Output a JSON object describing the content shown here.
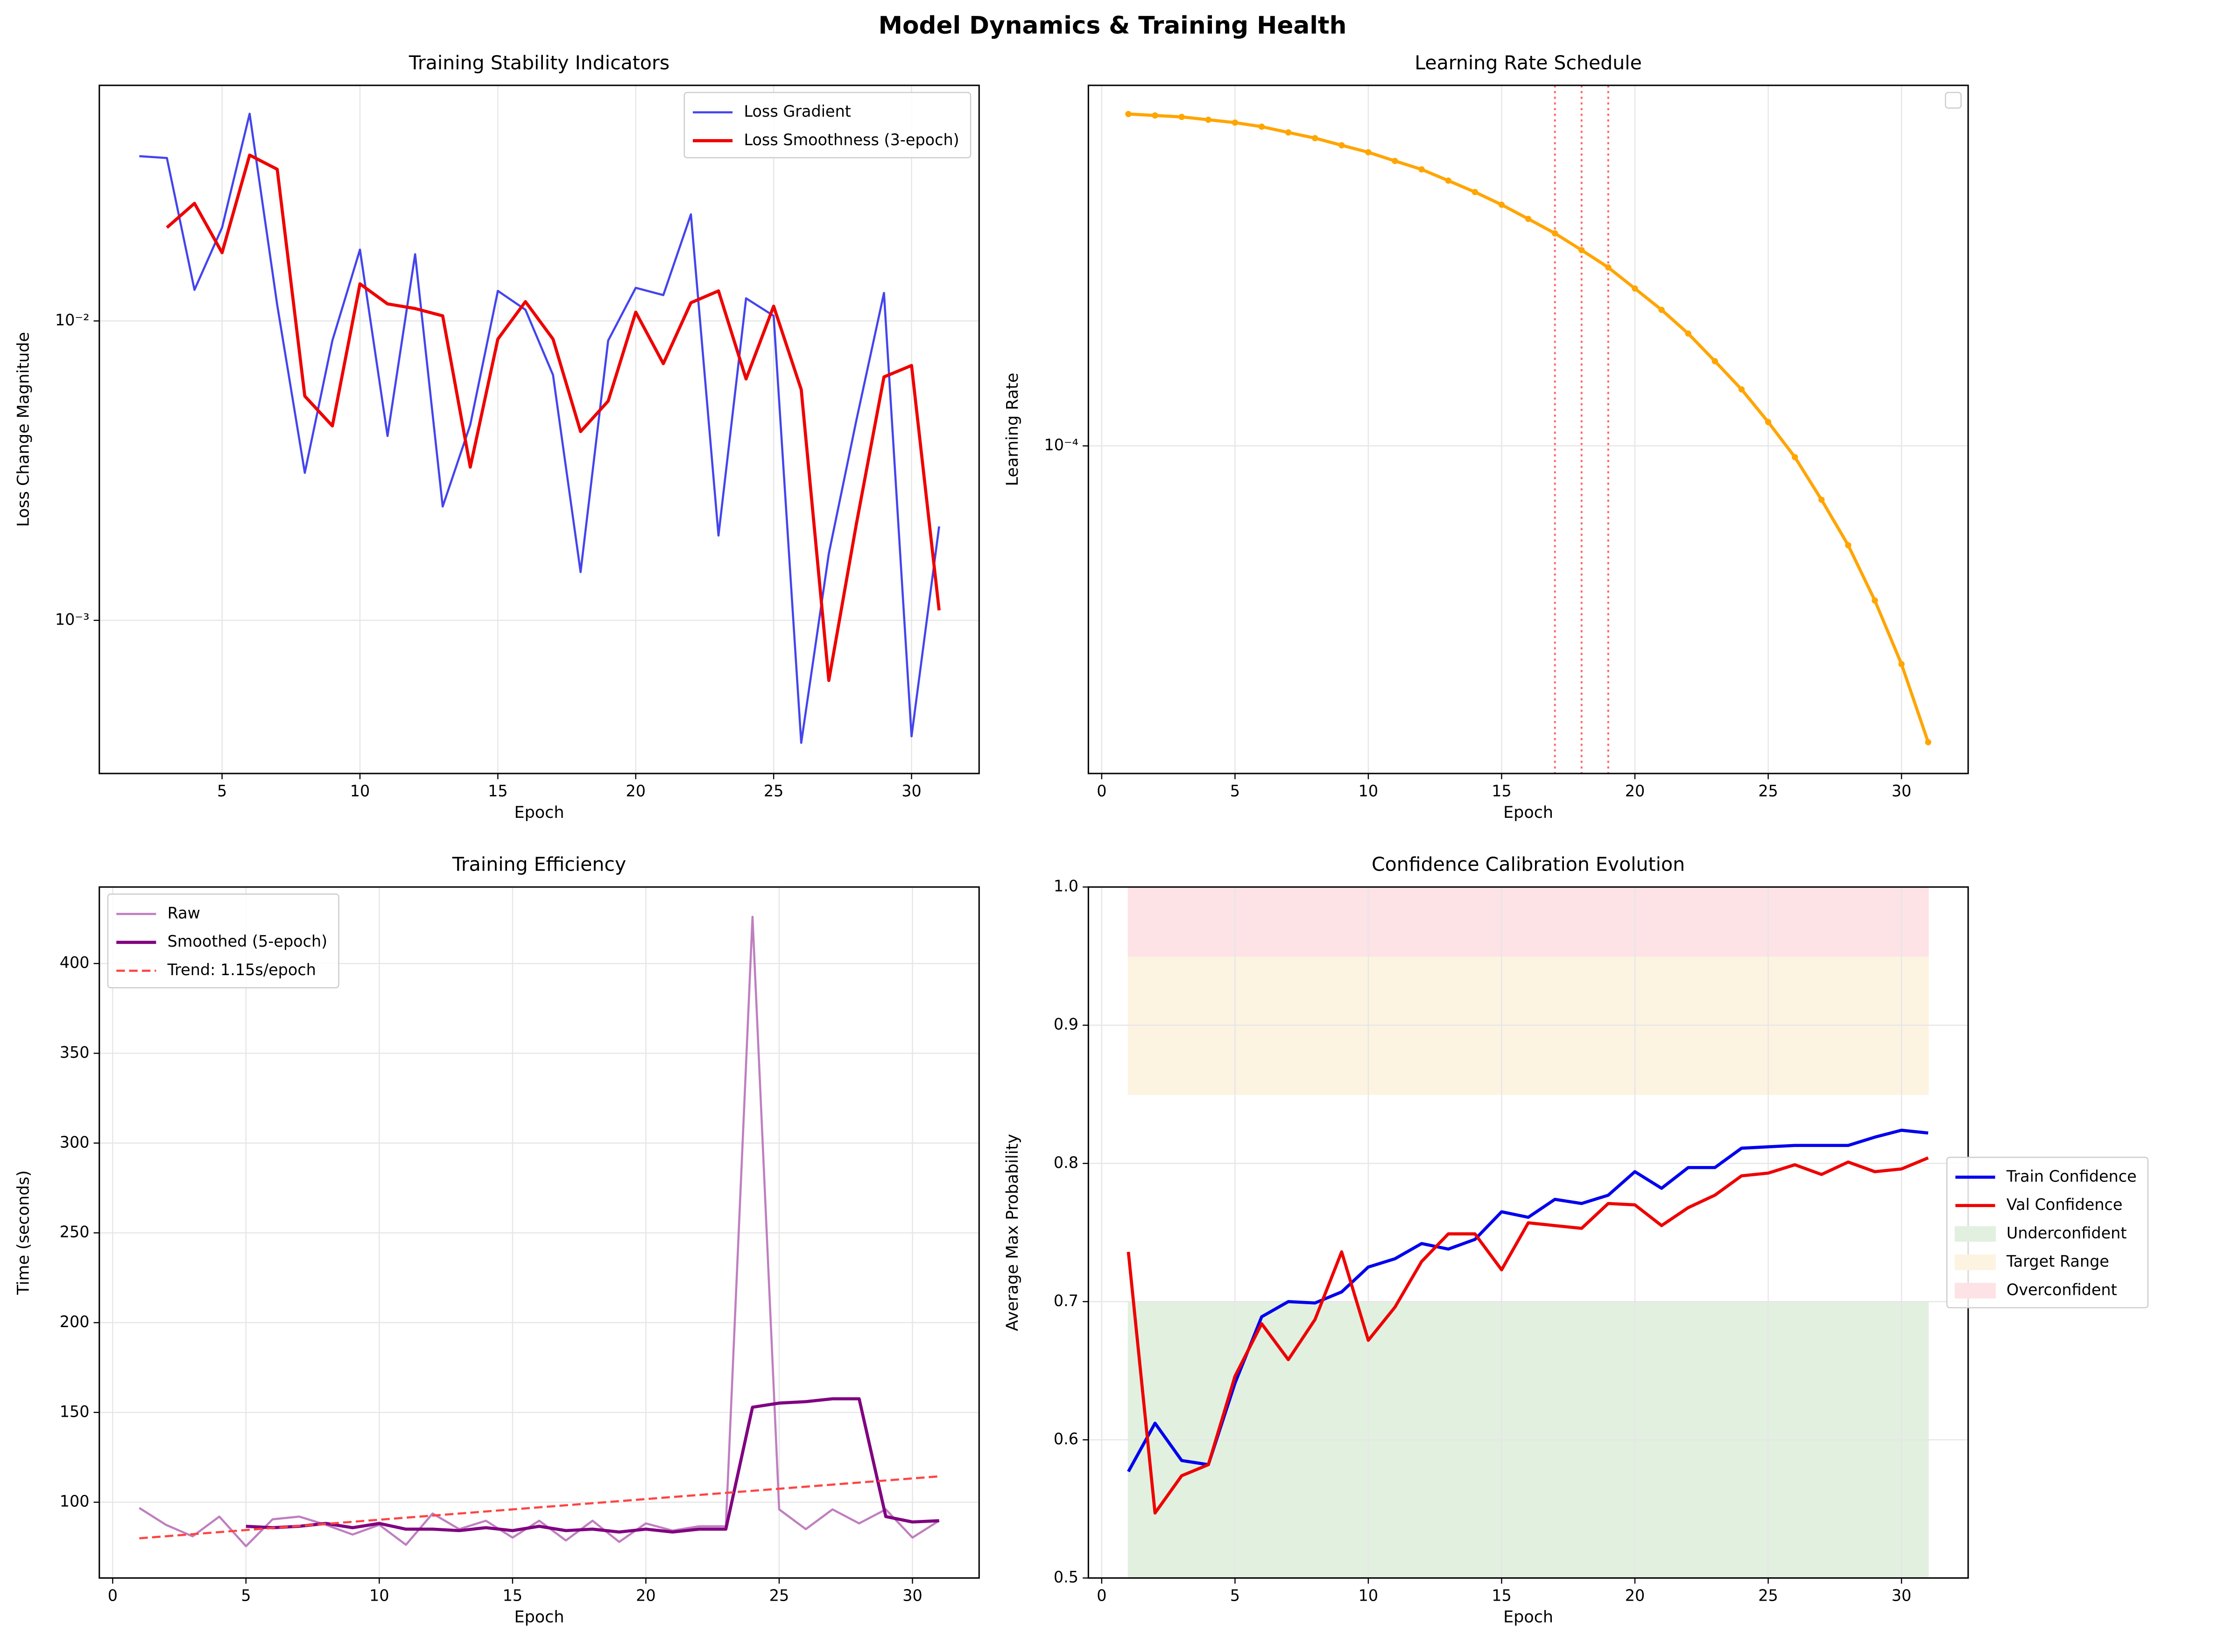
{
  "title": "Model Dynamics & Training Health",
  "chart_data": [
    {
      "type": "line",
      "title": "Training Stability Indicators",
      "xlabel": "Epoch",
      "ylabel": "Loss Change Magnitude",
      "x": [
        2,
        3,
        4,
        5,
        6,
        7,
        8,
        9,
        10,
        11,
        12,
        13,
        14,
        15,
        16,
        17,
        18,
        19,
        20,
        21,
        22,
        23,
        24,
        25,
        26,
        27,
        28,
        29,
        30,
        31
      ],
      "xlim": [
        0.55,
        32.45
      ],
      "xticks": [
        5,
        10,
        15,
        20,
        25,
        30
      ],
      "ylim": [
        0.000308,
        0.0612
      ],
      "log_y": true,
      "yticks": [
        {
          "value": 0.001,
          "label": "10⁻³"
        },
        {
          "value": 0.01,
          "label": "10⁻²"
        }
      ],
      "grid": true,
      "legend": "upper right",
      "series": [
        {
          "name": "Loss Gradient",
          "color": "#4444ee",
          "linewidth": 1.5,
          "values": [
            0.0355,
            0.035,
            0.0127,
            0.0205,
            0.0492,
            0.0113,
            0.00311,
            0.0086,
            0.0173,
            0.00413,
            0.0167,
            0.0024,
            0.0045,
            0.0126,
            0.0109,
            0.0066,
            0.00145,
            0.0086,
            0.0129,
            0.0122,
            0.0227,
            0.00192,
            0.0119,
            0.0104,
            0.00039,
            0.00167,
            0.00466,
            0.0124,
            0.00041,
            0.00206
          ]
        },
        {
          "name": "Loss Smoothness (3-epoch)",
          "color": "#ee0000",
          "linewidth": 2.2,
          "values": [
            null,
            0.0205,
            0.0247,
            0.0169,
            0.0358,
            0.0321,
            0.00561,
            0.00446,
            0.0133,
            0.0114,
            0.011,
            0.0104,
            0.00325,
            0.0087,
            0.0116,
            0.0087,
            0.00427,
            0.0054,
            0.0107,
            0.0072,
            0.0115,
            0.0126,
            0.0064,
            0.0112,
            0.0059,
            0.00063,
            0.0021,
            0.0065,
            0.0071,
            0.00108
          ]
        }
      ]
    },
    {
      "type": "line",
      "title": "Learning Rate Schedule",
      "xlabel": "Epoch",
      "ylabel": "Learning Rate",
      "x": [
        1,
        2,
        3,
        4,
        5,
        6,
        7,
        8,
        9,
        10,
        11,
        12,
        13,
        14,
        15,
        16,
        17,
        18,
        19,
        20,
        21,
        22,
        23,
        24,
        25,
        26,
        27,
        28,
        29,
        30,
        31
      ],
      "xlim": [
        -0.5,
        32.5
      ],
      "xticks": [
        0,
        5,
        10,
        15,
        20,
        25,
        30
      ],
      "ylim": [
        1.03e-05,
        0.00122
      ],
      "log_y": true,
      "yticks": [
        {
          "value": 0.0001,
          "label": "10⁻⁴"
        }
      ],
      "grid": true,
      "legend": "upper right",
      "vlines": [
        17,
        18,
        19
      ],
      "vline_color": "#ff6666",
      "series": [
        {
          "color": "#ffa500",
          "linewidth": 2.2,
          "marker": true,
          "values": [
            0.001,
            0.00099,
            0.00098,
            0.000961,
            0.000942,
            0.000916,
            0.00088,
            0.000846,
            0.000805,
            0.000767,
            0.000722,
            0.000681,
            0.00063,
            0.000582,
            0.000533,
            0.000483,
            0.000437,
            0.000389,
            0.000345,
            0.000298,
            0.000257,
            0.000218,
            0.00018,
            0.000148,
            0.000118,
            9.25e-05,
            6.88e-05,
            5.02e-05,
            3.42e-05,
            2.2e-05,
            1.28e-05
          ]
        }
      ]
    },
    {
      "type": "line",
      "title": "Training Efficiency",
      "xlabel": "Epoch",
      "ylabel": "Time (seconds)",
      "x": [
        1,
        2,
        3,
        4,
        5,
        6,
        7,
        8,
        9,
        10,
        11,
        12,
        13,
        14,
        15,
        16,
        17,
        18,
        19,
        20,
        21,
        22,
        23,
        24,
        25,
        26,
        27,
        28,
        29,
        30,
        31
      ],
      "xlim": [
        -0.5,
        32.5
      ],
      "xticks": [
        0,
        5,
        10,
        15,
        20,
        25,
        30
      ],
      "ylim": [
        57.8,
        442.6
      ],
      "yticks": [
        100,
        150,
        200,
        250,
        300,
        350,
        400
      ],
      "grid": true,
      "legend": "upper left",
      "series": [
        {
          "name": "Raw",
          "color": "#bf7fbf",
          "linewidth": 1.5,
          "values": [
            96.8,
            87.4,
            81,
            92,
            75.5,
            90.5,
            92,
            87.4,
            82,
            87.4,
            76.3,
            93.7,
            85,
            89.7,
            80.3,
            89.7,
            78.7,
            89.7,
            77.9,
            88.2,
            84.2,
            86.6,
            86.6,
            426,
            96,
            85,
            96,
            88.2,
            96,
            80.3,
            89.7
          ]
        },
        {
          "name": "Smoothed (5-epoch)",
          "color": "#800080",
          "linewidth": 2.2,
          "values": [
            null,
            null,
            null,
            null,
            86.6,
            85.8,
            86.6,
            88.2,
            85.8,
            88.2,
            85,
            85,
            84.2,
            85.8,
            84.2,
            86.6,
            84.2,
            85,
            83.4,
            85,
            83.4,
            85,
            85,
            152.9,
            155.2,
            156,
            157.6,
            157.6,
            92,
            89,
            89.7
          ]
        },
        {
          "name": "Trend: 1.15s/epoch",
          "color": "#ff4444",
          "linewidth": 1.5,
          "linestyle": "dashed",
          "x": [
            1,
            31
          ],
          "values": [
            79.9,
            114.4
          ]
        }
      ]
    },
    {
      "type": "line",
      "title": "Confidence Calibration Evolution",
      "xlabel": "Epoch",
      "ylabel": "Average Max Probability",
      "x": [
        1,
        2,
        3,
        4,
        5,
        6,
        7,
        8,
        9,
        10,
        11,
        12,
        13,
        14,
        15,
        16,
        17,
        18,
        19,
        20,
        21,
        22,
        23,
        24,
        25,
        26,
        27,
        28,
        29,
        30,
        31
      ],
      "xlim": [
        -0.5,
        32.5
      ],
      "xticks": [
        0,
        5,
        10,
        15,
        20,
        25,
        30
      ],
      "ylim": [
        0.5,
        1.0
      ],
      "yticks": [
        0.5,
        0.6,
        0.7,
        0.8,
        0.9,
        {
          "value": 1,
          "label": "1.0"
        }
      ],
      "grid": true,
      "legend": "outside right",
      "series": [
        {
          "name": "Train Confidence",
          "color": "#0000ee",
          "linewidth": 2.2,
          "values": [
            0.577,
            0.612,
            0.585,
            0.582,
            0.641,
            0.689,
            0.7,
            0.699,
            0.707,
            0.725,
            0.731,
            0.742,
            0.738,
            0.745,
            0.765,
            0.761,
            0.774,
            0.771,
            0.777,
            0.794,
            0.782,
            0.797,
            0.797,
            0.811,
            0.812,
            0.813,
            0.813,
            0.813,
            0.819,
            0.824,
            0.822
          ]
        },
        {
          "name": "Val Confidence",
          "color": "#ee0000",
          "linewidth": 2.2,
          "values": [
            0.736,
            0.547,
            0.574,
            0.582,
            0.646,
            0.684,
            0.658,
            0.687,
            0.736,
            0.672,
            0.696,
            0.729,
            0.749,
            0.749,
            0.723,
            0.757,
            0.755,
            0.753,
            0.771,
            0.77,
            0.755,
            0.768,
            0.777,
            0.791,
            0.793,
            0.799,
            0.792,
            0.801,
            0.794,
            0.796,
            0.804
          ]
        }
      ],
      "bands": [
        {
          "name": "Underconfident",
          "range": [
            0.5,
            0.7
          ],
          "color": "#e2f0e0"
        },
        {
          "name": "Target Range",
          "range": [
            0.85,
            0.95
          ],
          "color": "#fdf3e1"
        },
        {
          "name": "Overconfident",
          "range": [
            0.95,
            1.0
          ],
          "color": "#fde2e6"
        }
      ]
    }
  ]
}
